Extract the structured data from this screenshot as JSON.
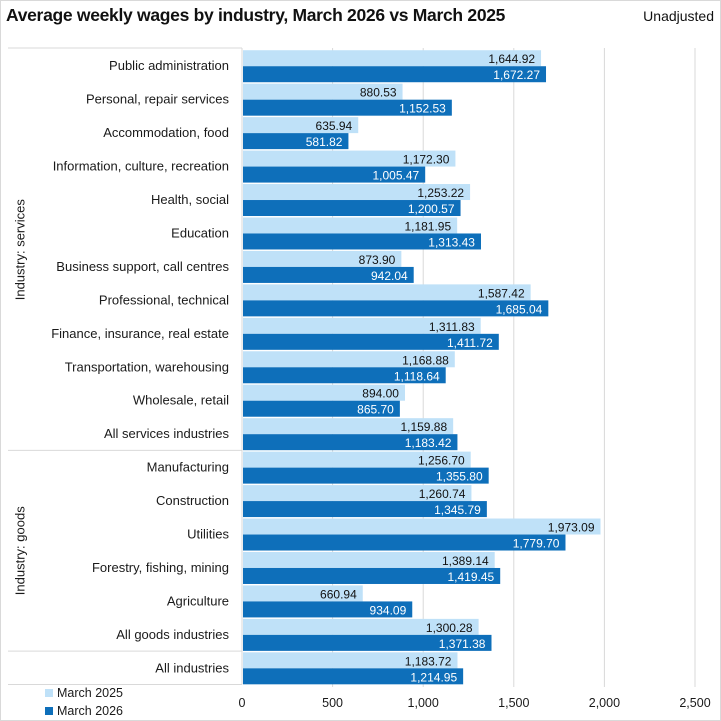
{
  "header": {
    "title": "Average weekly wages by industry, March 2026 vs March 2025",
    "subtitle": "Unadjusted"
  },
  "colors": {
    "march_2025": "#bfe1f8",
    "march_2026": "#0e6fba",
    "gridline": "#d9d9d9"
  },
  "chart_data": {
    "type": "bar",
    "orientation": "horizontal",
    "title": "Average weekly wages by industry, March 2026 vs March 2025",
    "subtitle": "Unadjusted",
    "xlabel": "",
    "ylabel": "",
    "xlim": [
      0,
      2500
    ],
    "xticks": [
      0,
      500,
      1000,
      1500,
      2000,
      2500
    ],
    "xtick_labels": [
      "0",
      "500",
      "1,000",
      "1,500",
      "2,000",
      "2,500"
    ],
    "grid": true,
    "legend_position": "bottom-left",
    "groups": [
      {
        "label": "Industry: services",
        "start": 0,
        "end": 11
      },
      {
        "label": "Industry: goods",
        "start": 12,
        "end": 17
      },
      {
        "label": "",
        "start": 18,
        "end": 18
      }
    ],
    "categories": [
      "Public administration",
      "Personal, repair services",
      "Accommodation, food",
      "Information, culture, recreation",
      "Health, social",
      "Education",
      "Business support, call centres",
      "Professional, technical",
      "Finance, insurance, real estate",
      "Transportation, warehousing",
      "Wholesale, retail",
      "All services industries",
      "Manufacturing",
      "Construction",
      "Utilities",
      "Forestry, fishing, mining",
      "Agriculture",
      "All goods industries",
      "All industries"
    ],
    "series": [
      {
        "name": "March 2025",
        "values": [
          1644.92,
          880.53,
          635.94,
          1172.3,
          1253.22,
          1181.95,
          873.9,
          1587.42,
          1311.83,
          1168.88,
          894.0,
          1159.88,
          1256.7,
          1260.74,
          1973.09,
          1389.14,
          660.94,
          1300.28,
          1183.72
        ],
        "labels": [
          "1,644.92",
          "880.53",
          "635.94",
          "1,172.30",
          "1,253.22",
          "1,181.95",
          "873.90",
          "1,587.42",
          "1,311.83",
          "1,168.88",
          "894.00",
          "1,159.88",
          "1,256.70",
          "1,260.74",
          "1,973.09",
          "1,389.14",
          "660.94",
          "1,300.28",
          "1,183.72"
        ]
      },
      {
        "name": "March 2026",
        "values": [
          1672.27,
          1152.53,
          581.82,
          1005.47,
          1200.57,
          1313.43,
          942.04,
          1685.04,
          1411.72,
          1118.64,
          865.7,
          1183.42,
          1355.8,
          1345.79,
          1779.7,
          1419.45,
          934.09,
          1371.38,
          1214.95
        ],
        "labels": [
          "1,672.27",
          "1,152.53",
          "581.82",
          "1,005.47",
          "1,200.57",
          "1,313.43",
          "942.04",
          "1,685.04",
          "1,411.72",
          "1,118.64",
          "865.70",
          "1,183.42",
          "1,355.80",
          "1,345.79",
          "1,779.70",
          "1,419.45",
          "934.09",
          "1,371.38",
          "1,214.95"
        ]
      }
    ]
  }
}
